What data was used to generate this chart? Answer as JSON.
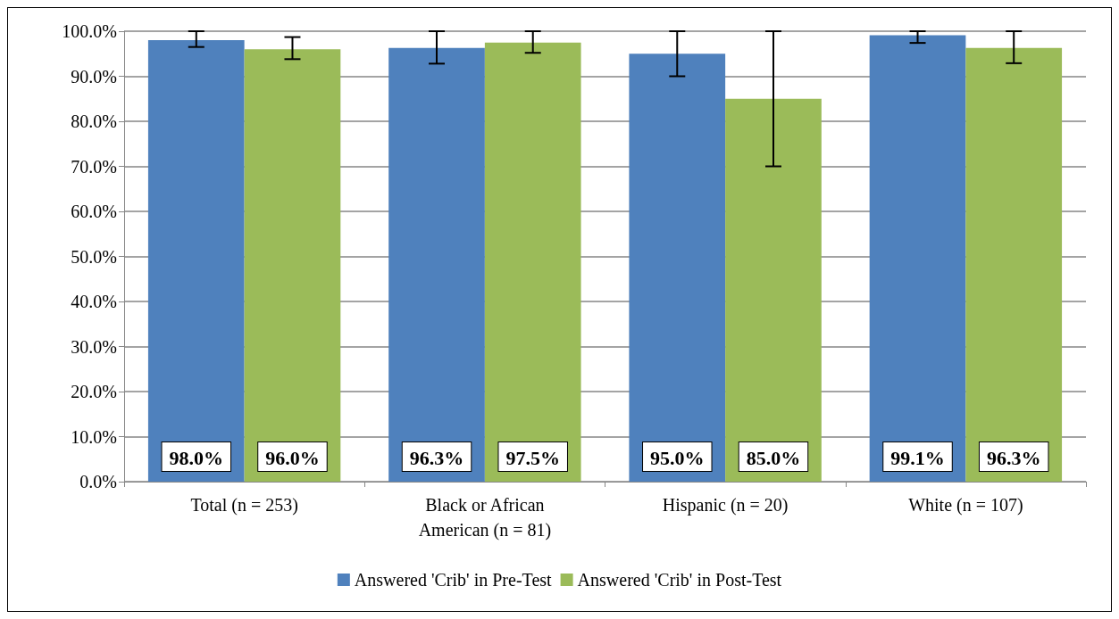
{
  "chart_data": {
    "type": "bar",
    "categories": [
      "Total (n = 253)",
      "Black or African\nAmerican (n = 81)",
      "Hispanic (n = 20)",
      "White (n = 107)"
    ],
    "series": [
      {
        "name": "Answered 'Crib' in Pre-Test",
        "color": "#4f81bd",
        "values": [
          98.0,
          96.3,
          95.0,
          99.1
        ],
        "value_labels": [
          "98.0%",
          "96.3%",
          "95.0%",
          "99.1%"
        ],
        "errors": [
          [
            96.5,
            100
          ],
          [
            92.8,
            100
          ],
          [
            90,
            100
          ],
          [
            97.4,
            100
          ]
        ]
      },
      {
        "name": "Answered 'Crib' in Post-Test",
        "color": "#9bbb59",
        "values": [
          96.0,
          97.5,
          85.0,
          96.3
        ],
        "value_labels": [
          "96.0%",
          "97.5%",
          "85.0%",
          "96.3%"
        ],
        "errors": [
          [
            93.8,
            98.7
          ],
          [
            95.2,
            100
          ],
          [
            70,
            100
          ],
          [
            92.9,
            100
          ]
        ]
      }
    ],
    "ylim": [
      0,
      100
    ],
    "yticks": [
      {
        "value": 0,
        "label": "0.0%"
      },
      {
        "value": 10,
        "label": "10.0%"
      },
      {
        "value": 20,
        "label": "20.0%"
      },
      {
        "value": 30,
        "label": "30.0%"
      },
      {
        "value": 40,
        "label": "40.0%"
      },
      {
        "value": 50,
        "label": "50.0%"
      },
      {
        "value": 60,
        "label": "60.0%"
      },
      {
        "value": 70,
        "label": "70.0%"
      },
      {
        "value": 80,
        "label": "80.0%"
      },
      {
        "value": 90,
        "label": "90.0%"
      },
      {
        "value": 100,
        "label": "100.0%"
      }
    ],
    "grid": "y",
    "legend": "bottom"
  }
}
